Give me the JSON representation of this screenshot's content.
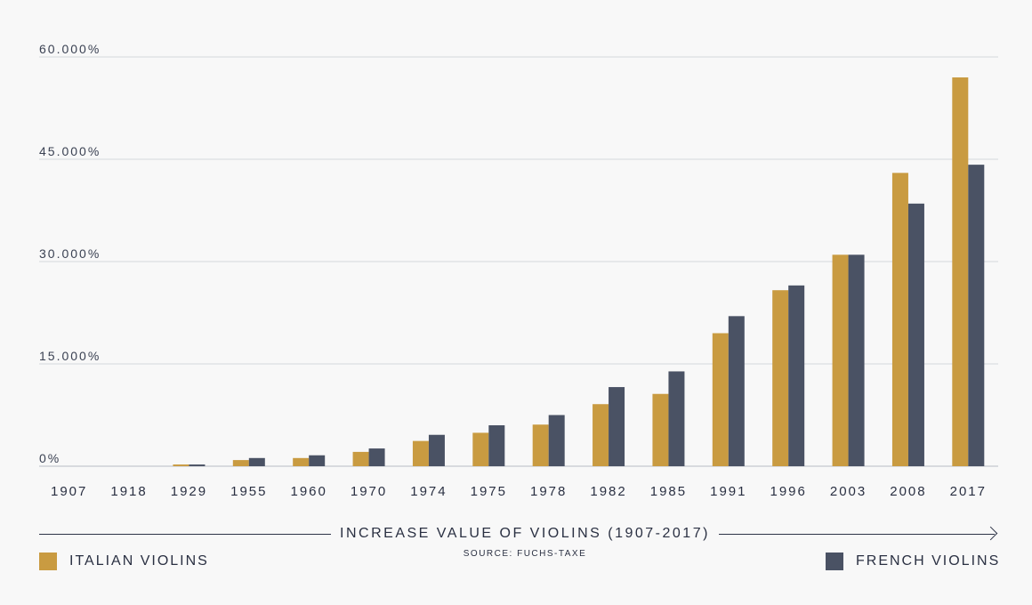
{
  "chart_data": {
    "type": "bar",
    "title": "INCREASE VALUE OF VIOLINS (1907-2017)",
    "subtitle": "SOURCE: FUCHS-TAXE",
    "categories": [
      "1907",
      "1918",
      "1929",
      "1955",
      "1960",
      "1970",
      "1974",
      "1975",
      "1978",
      "1982",
      "1985",
      "1991",
      "1996",
      "2003",
      "2008",
      "2017"
    ],
    "series": [
      {
        "name": "ITALIAN VIOLINS",
        "color": "#c99b41",
        "values": [
          0,
          0,
          250,
          900,
          1200,
          2100,
          3700,
          4900,
          6100,
          9100,
          10600,
          19500,
          25800,
          31000,
          43000,
          57000
        ]
      },
      {
        "name": "FRENCH VIOLINS",
        "color": "#4a5264",
        "values": [
          0,
          0,
          250,
          1200,
          1600,
          2600,
          4600,
          6000,
          7500,
          11600,
          13900,
          22000,
          26500,
          31000,
          38500,
          44200
        ]
      }
    ],
    "ylim": [
      0,
      60000
    ],
    "yticks": [
      0,
      15000,
      30000,
      45000,
      60000
    ],
    "ytick_labels": [
      "0%",
      "15.000%",
      "30.000%",
      "45.000%",
      "60.000%"
    ],
    "grid": true,
    "legend": "bottom"
  }
}
